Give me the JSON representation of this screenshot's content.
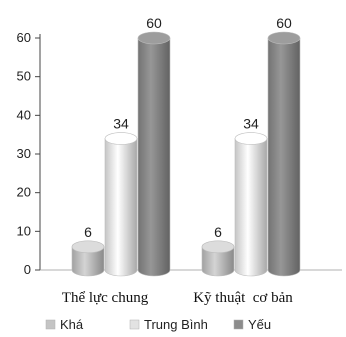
{
  "chart_data": {
    "type": "bar",
    "categories": [
      "Thể lực chung",
      "Kỹ thuật  cơ bản"
    ],
    "series": [
      {
        "name": "Khá",
        "values": [
          6,
          6
        ],
        "color": "#c4c4c4"
      },
      {
        "name": "Trung Bình",
        "values": [
          34,
          34
        ],
        "color": "#f0f0f0"
      },
      {
        "name": "Yếu",
        "values": [
          60,
          60
        ],
        "color": "#8c8c8c"
      }
    ],
    "yticks": [
      0,
      10,
      20,
      30,
      40,
      50,
      60
    ],
    "ylim": [
      0,
      60
    ],
    "grid": false,
    "legend": "bottom",
    "style": "3d-cylinder"
  }
}
